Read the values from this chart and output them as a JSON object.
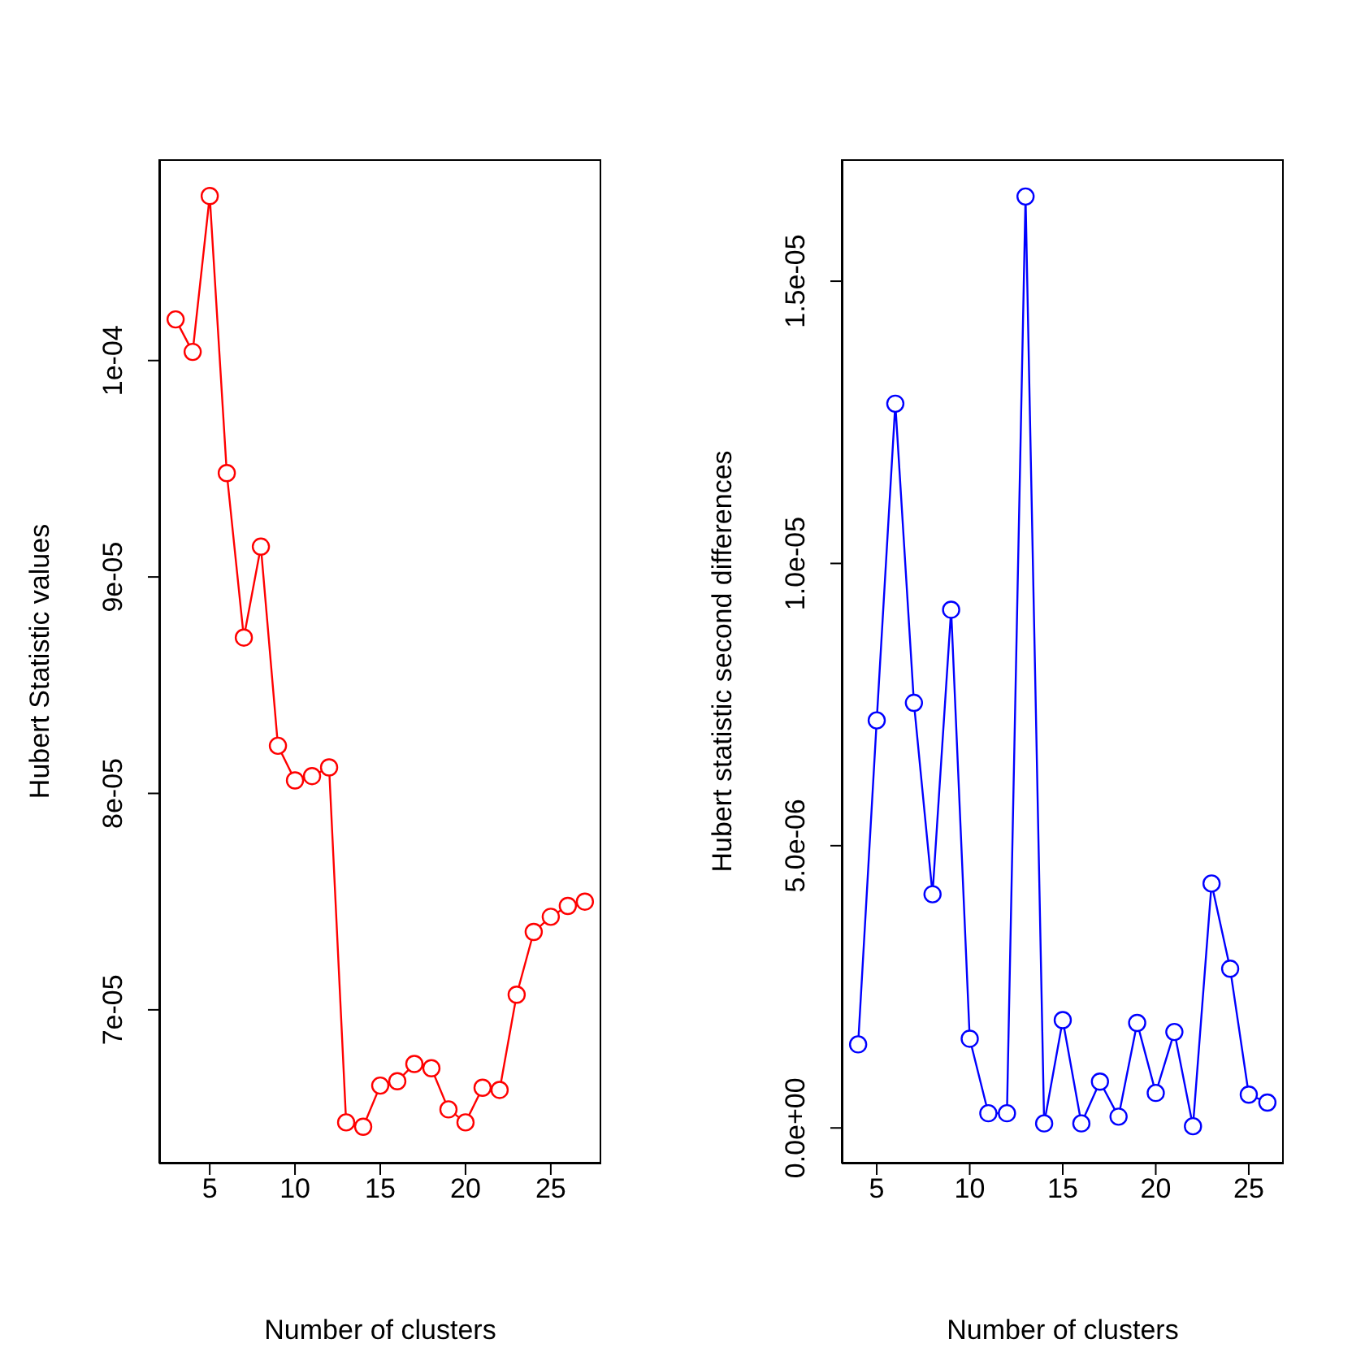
{
  "chart_data": [
    {
      "type": "line",
      "xlabel": "Number of clusters",
      "ylabel": "Hubert Statistic values",
      "marker": "circle",
      "line_style": "solid",
      "x": [
        3,
        4,
        5,
        6,
        7,
        8,
        9,
        10,
        11,
        12,
        13,
        14,
        15,
        16,
        17,
        18,
        19,
        20,
        21,
        22,
        23,
        24,
        25,
        26,
        27
      ],
      "series": [
        {
          "color": "#ff0000",
          "values": [
            0.0001019,
            0.0001004,
            0.0001076,
            9.48e-05,
            8.72e-05,
            9.14e-05,
            8.22e-05,
            8.06e-05,
            8.08e-05,
            8.12e-05,
            6.48e-05,
            6.46e-05,
            6.65e-05,
            6.67e-05,
            6.75e-05,
            6.73e-05,
            6.54e-05,
            6.48e-05,
            6.64e-05,
            6.63e-05,
            7.07e-05,
            7.36e-05,
            7.43e-05,
            7.48e-05,
            7.5e-05
          ]
        }
      ],
      "xlim": [
        2.04,
        27.96
      ],
      "xticks": [
        5,
        10,
        15,
        20,
        25
      ],
      "ylim": [
        6.29e-05,
        0.0001093
      ],
      "yticks": [
        {
          "value": 7e-05,
          "label": "7e-05"
        },
        {
          "value": 8e-05,
          "label": "8e-05"
        },
        {
          "value": 9e-05,
          "label": "9e-05"
        },
        {
          "value": 0.0001,
          "label": "1e-04"
        }
      ]
    },
    {
      "type": "line",
      "xlabel": "Number of clusters",
      "ylabel": "Hubert statistic second differences",
      "marker": "circle",
      "line_style": "solid",
      "x": [
        4,
        5,
        6,
        7,
        8,
        9,
        10,
        11,
        12,
        13,
        14,
        15,
        16,
        17,
        18,
        19,
        20,
        21,
        22,
        23,
        24,
        25,
        26
      ],
      "series": [
        {
          "color": "#0000ff",
          "values": [
            1.48e-06,
            7.22e-06,
            1.283e-05,
            7.53e-06,
            4.14e-06,
            9.18e-06,
            1.58e-06,
            2.6e-07,
            2.6e-07,
            1.65e-05,
            8e-08,
            1.91e-06,
            8e-08,
            8.2e-07,
            2e-07,
            1.86e-06,
            6.2e-07,
            1.7e-06,
            3e-08,
            4.33e-06,
            2.82e-06,
            5.9e-07,
            4.5e-07
          ]
        }
      ],
      "xlim": [
        3.12,
        26.88
      ],
      "xticks": [
        5,
        10,
        15,
        20,
        25
      ],
      "ylim": [
        -6.3e-07,
        1.716e-05
      ],
      "yticks": [
        {
          "value": 0,
          "label": "0.0e+00"
        },
        {
          "value": 5e-06,
          "label": "5.0e-06"
        },
        {
          "value": 1e-05,
          "label": "1.0e-05"
        },
        {
          "value": 1.5e-05,
          "label": "1.5e-05"
        }
      ]
    }
  ]
}
